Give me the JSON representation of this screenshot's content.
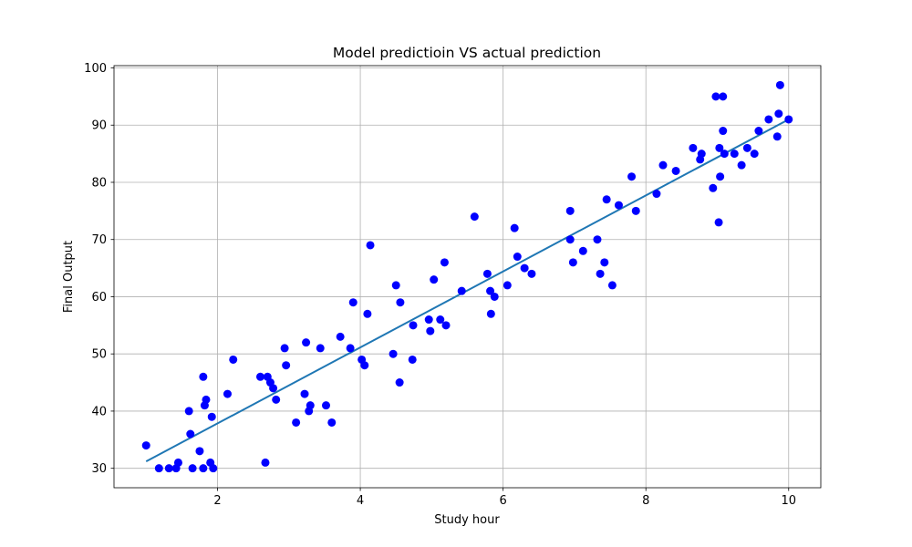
{
  "chart_data": {
    "type": "scatter",
    "title": "Model predictioin VS actual prediction",
    "xlabel": "Study hour",
    "ylabel": "Final Output",
    "xlim": [
      0.55,
      10.45
    ],
    "ylim": [
      26.6,
      100.4
    ],
    "xticks": [
      2,
      4,
      6,
      8,
      10
    ],
    "yticks": [
      30,
      40,
      50,
      60,
      70,
      80,
      90,
      100
    ],
    "grid": true,
    "colors": {
      "points": "#0000ff",
      "line": "#1f77b4",
      "grid": "#b0b0b0"
    },
    "series": [
      {
        "kind": "scatter",
        "points": [
          [
            1.0,
            34
          ],
          [
            1.18,
            30
          ],
          [
            1.32,
            30
          ],
          [
            1.42,
            30
          ],
          [
            1.45,
            31
          ],
          [
            1.6,
            40
          ],
          [
            1.62,
            36
          ],
          [
            1.65,
            30
          ],
          [
            1.75,
            33
          ],
          [
            1.8,
            46
          ],
          [
            1.8,
            30
          ],
          [
            1.82,
            41
          ],
          [
            1.84,
            42
          ],
          [
            1.9,
            31
          ],
          [
            1.92,
            39
          ],
          [
            1.94,
            30
          ],
          [
            2.14,
            43
          ],
          [
            2.22,
            49
          ],
          [
            2.6,
            46
          ],
          [
            2.67,
            31
          ],
          [
            2.7,
            46
          ],
          [
            2.74,
            45
          ],
          [
            2.78,
            44
          ],
          [
            2.82,
            42
          ],
          [
            2.94,
            51
          ],
          [
            2.96,
            48
          ],
          [
            3.1,
            38
          ],
          [
            3.22,
            43
          ],
          [
            3.24,
            52
          ],
          [
            3.28,
            40
          ],
          [
            3.3,
            41
          ],
          [
            3.44,
            51
          ],
          [
            3.52,
            41
          ],
          [
            3.6,
            38
          ],
          [
            3.72,
            53
          ],
          [
            3.86,
            51
          ],
          [
            3.9,
            59
          ],
          [
            4.02,
            49
          ],
          [
            4.06,
            48
          ],
          [
            4.1,
            57
          ],
          [
            4.14,
            69
          ],
          [
            4.46,
            50
          ],
          [
            4.5,
            62
          ],
          [
            4.55,
            45
          ],
          [
            4.56,
            59
          ],
          [
            4.73,
            49
          ],
          [
            4.74,
            55
          ],
          [
            4.96,
            56
          ],
          [
            4.98,
            54
          ],
          [
            5.03,
            63
          ],
          [
            5.12,
            56
          ],
          [
            5.18,
            66
          ],
          [
            5.2,
            55
          ],
          [
            5.42,
            61
          ],
          [
            5.6,
            74
          ],
          [
            5.78,
            64
          ],
          [
            5.82,
            61
          ],
          [
            5.83,
            57
          ],
          [
            5.88,
            60
          ],
          [
            6.06,
            62
          ],
          [
            6.16,
            72
          ],
          [
            6.2,
            67
          ],
          [
            6.3,
            65
          ],
          [
            6.4,
            64
          ],
          [
            6.94,
            70
          ],
          [
            6.94,
            75
          ],
          [
            6.98,
            66
          ],
          [
            7.12,
            68
          ],
          [
            7.32,
            70
          ],
          [
            7.36,
            64
          ],
          [
            7.42,
            66
          ],
          [
            7.45,
            77
          ],
          [
            7.53,
            62
          ],
          [
            7.62,
            76
          ],
          [
            7.8,
            81
          ],
          [
            7.86,
            75
          ],
          [
            8.15,
            78
          ],
          [
            8.24,
            83
          ],
          [
            8.42,
            82
          ],
          [
            8.66,
            86
          ],
          [
            8.76,
            84
          ],
          [
            8.78,
            85
          ],
          [
            8.94,
            79
          ],
          [
            8.98,
            95
          ],
          [
            9.02,
            73
          ],
          [
            9.03,
            86
          ],
          [
            9.04,
            81
          ],
          [
            9.08,
            89
          ],
          [
            9.08,
            95
          ],
          [
            9.1,
            85
          ],
          [
            9.24,
            85
          ],
          [
            9.34,
            83
          ],
          [
            9.42,
            86
          ],
          [
            9.52,
            85
          ],
          [
            9.58,
            89
          ],
          [
            9.72,
            91
          ],
          [
            9.84,
            88
          ],
          [
            9.86,
            92
          ],
          [
            9.88,
            97
          ],
          [
            10.0,
            91
          ]
        ]
      },
      {
        "kind": "line",
        "points": [
          [
            1.0,
            31.2
          ],
          [
            10.0,
            91.0
          ]
        ]
      }
    ]
  }
}
